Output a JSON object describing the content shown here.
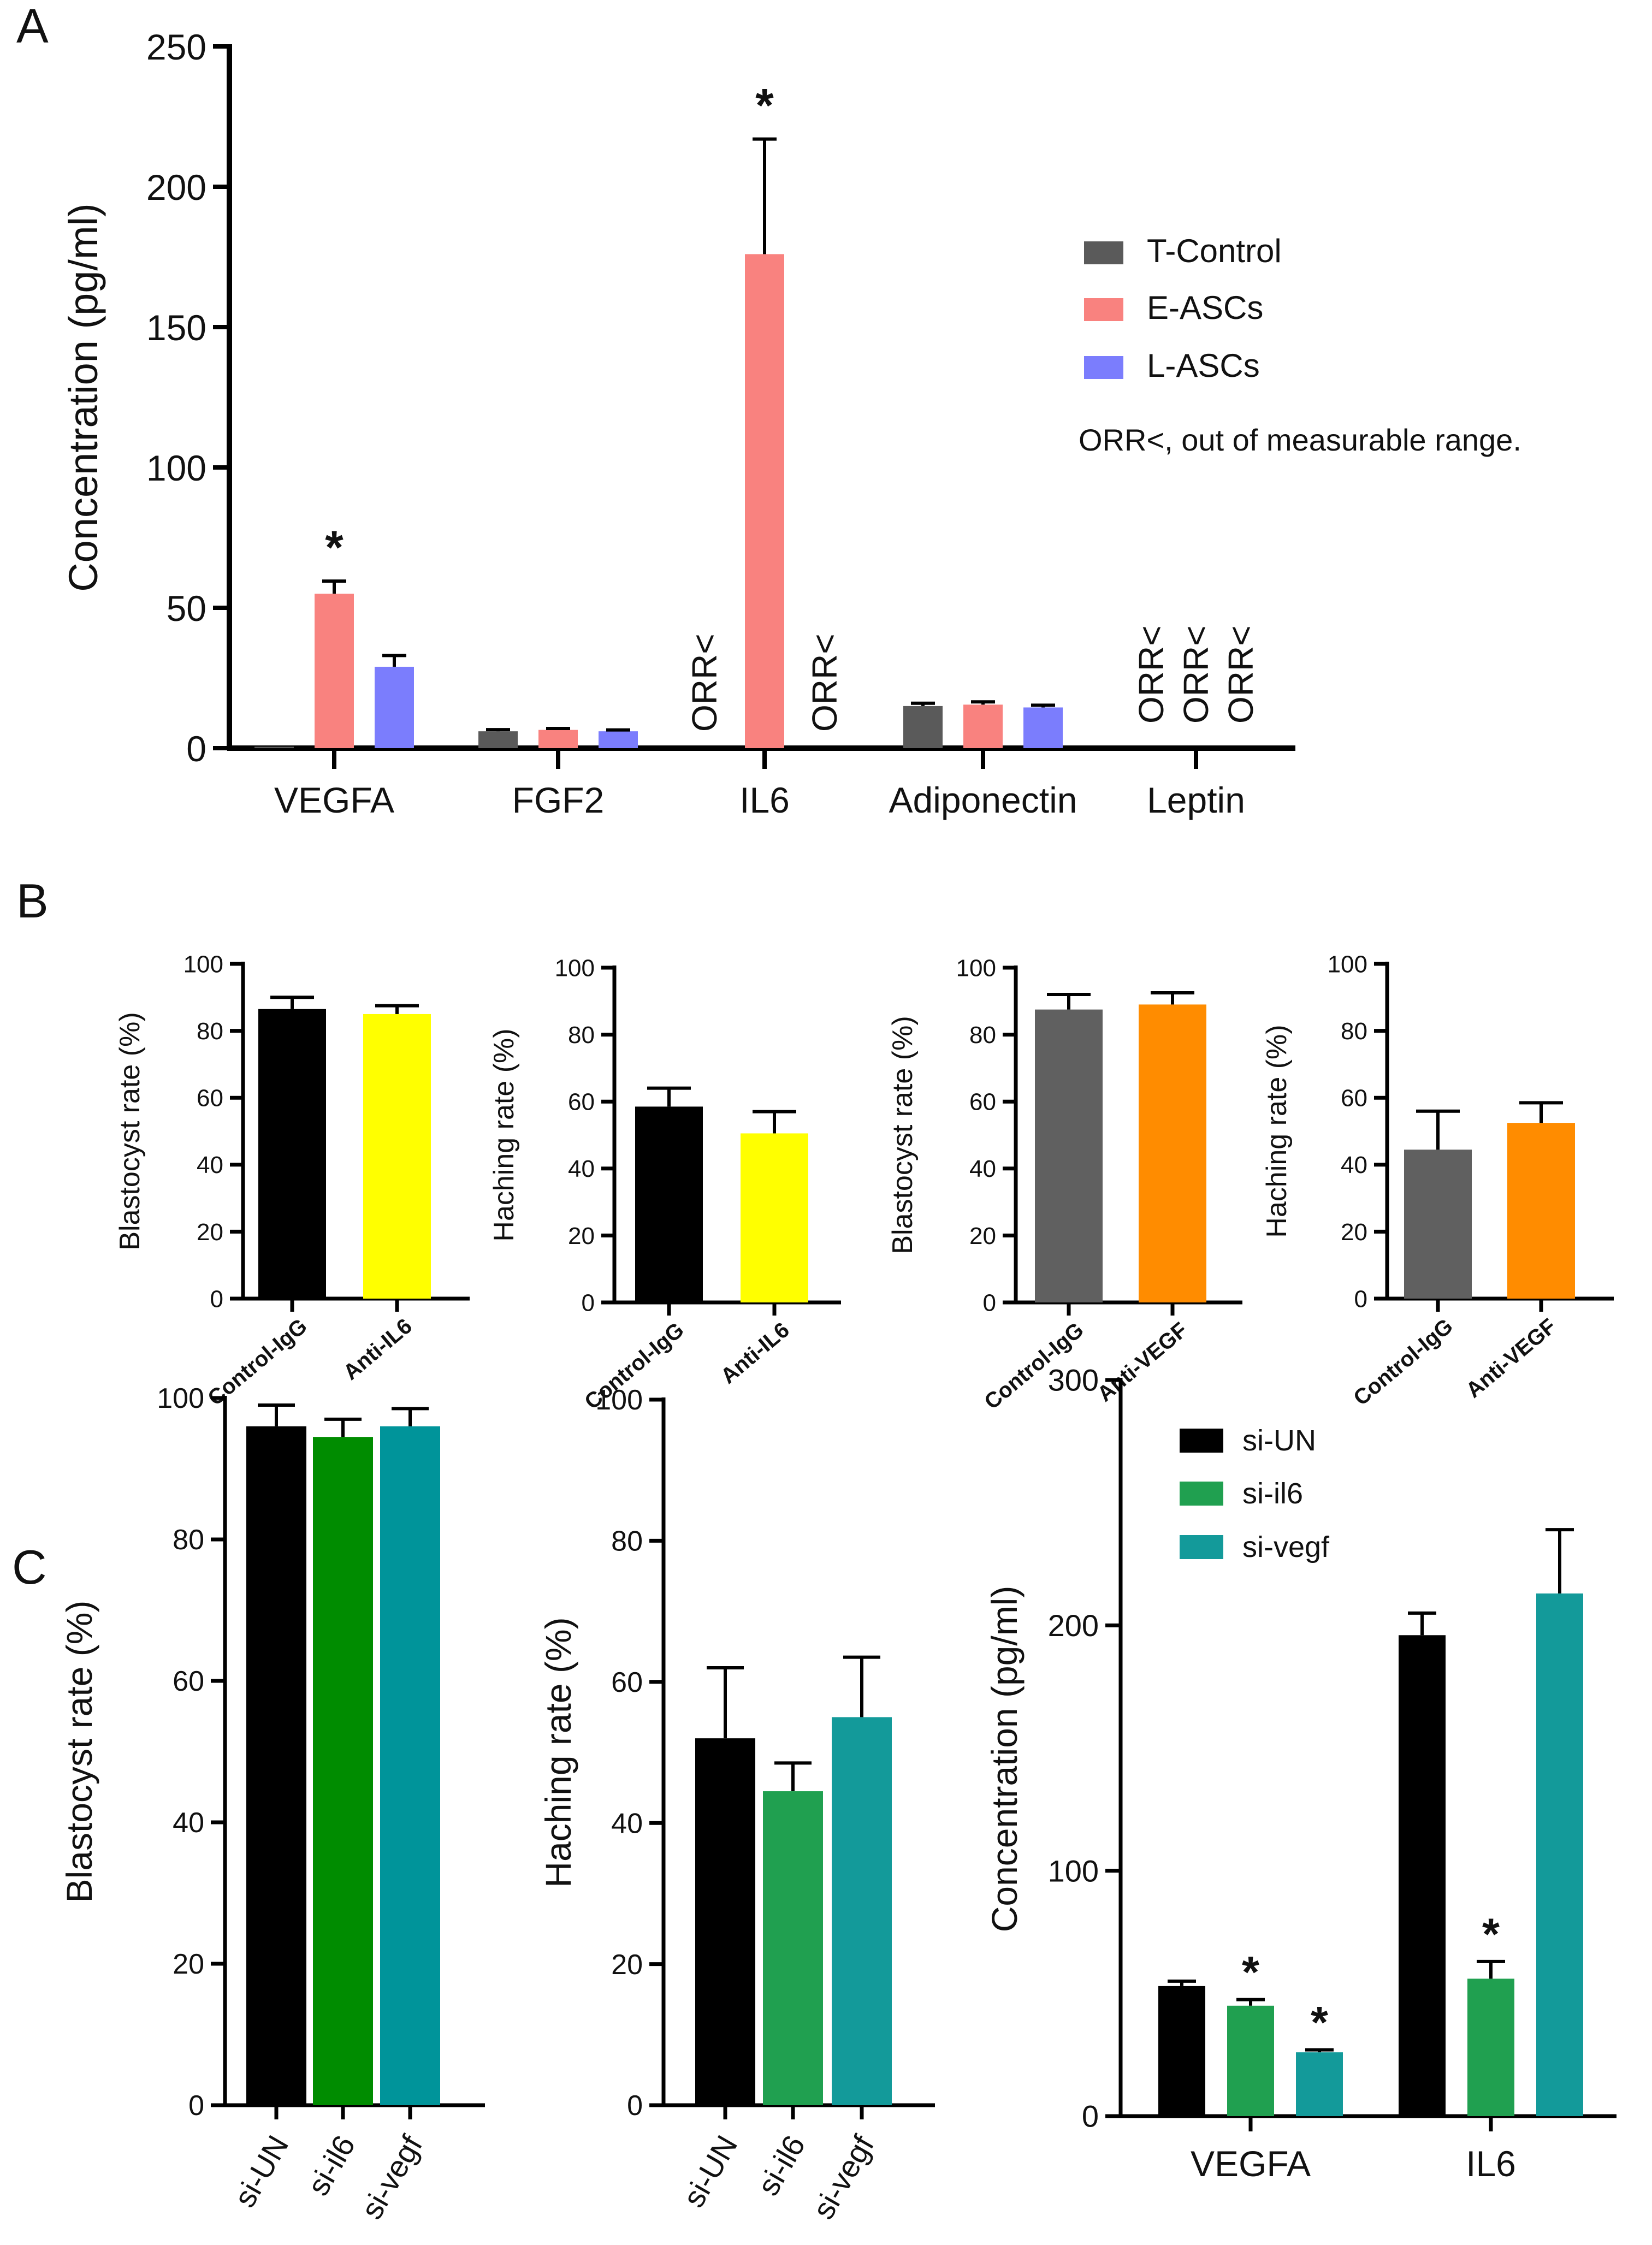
{
  "panels": {
    "A": "A",
    "B": "B",
    "C": "C"
  },
  "chart_data": [
    {
      "id": "A",
      "type": "bar",
      "title": "",
      "xlabel": "",
      "ylabel": "Concentration (pg/ml)",
      "ylim": [
        0,
        250
      ],
      "yticks": [
        0,
        50,
        100,
        150,
        200,
        250
      ],
      "categories": [
        "VEGFA",
        "FGF2",
        "IL6",
        "Adiponectin",
        "Leptin"
      ],
      "series": [
        {
          "name": "T-Control",
          "color": "#5a5a5a",
          "values": [
            0.5,
            6,
            null,
            15,
            null
          ],
          "errors": [
            0,
            0.6,
            0,
            1,
            0
          ]
        },
        {
          "name": "E-ASCs",
          "color": "#f9827f",
          "values": [
            55,
            6.5,
            176,
            15.5,
            null
          ],
          "errors": [
            4.5,
            0.5,
            41,
            1,
            0
          ]
        },
        {
          "name": "L-ASCs",
          "color": "#7b7dfd",
          "values": [
            29,
            6,
            null,
            14.5,
            null
          ],
          "errors": [
            4,
            0.5,
            0,
            0.8,
            0
          ]
        }
      ],
      "significance": [
        {
          "text": "*",
          "category": "VEGFA",
          "series": 1
        },
        {
          "text": "*",
          "category": "IL6",
          "series": 1
        }
      ],
      "out_of_range": [
        {
          "text": "ORR<",
          "category": "IL6",
          "series": 0
        },
        {
          "text": "ORR<",
          "category": "IL6",
          "series": 2
        },
        {
          "text": "ORR<",
          "category": "Leptin",
          "series": 0
        },
        {
          "text": "ORR<",
          "category": "Leptin",
          "series": 1
        },
        {
          "text": "ORR<",
          "category": "Leptin",
          "series": 2
        }
      ],
      "legend": [
        "T-Control",
        "E-ASCs",
        "L-ASCs"
      ],
      "legend_position": "right",
      "note": "ORR<, out of measurable range."
    },
    {
      "id": "B1",
      "type": "bar",
      "ylabel": "Blastocyst rate (%)",
      "ylim": [
        0,
        100
      ],
      "yticks": [
        0,
        20,
        40,
        60,
        80,
        100
      ],
      "categories": [
        "Control-IgG",
        "Anti-IL6"
      ],
      "values": [
        86.5,
        85
      ],
      "errors": [
        3.5,
        2.5
      ],
      "colors": [
        "#000000",
        "#ffff00"
      ]
    },
    {
      "id": "B2",
      "type": "bar",
      "ylabel": "Haching rate (%)",
      "ylim": [
        0,
        100
      ],
      "yticks": [
        0,
        20,
        40,
        60,
        80,
        100
      ],
      "categories": [
        "Control-IgG",
        "Anti-IL6"
      ],
      "values": [
        58.5,
        50.5
      ],
      "errors": [
        5.5,
        6.5
      ],
      "colors": [
        "#000000",
        "#ffff00"
      ]
    },
    {
      "id": "B3",
      "type": "bar",
      "ylabel": "Blastocyst rate (%)",
      "ylim": [
        0,
        100
      ],
      "yticks": [
        0,
        20,
        40,
        60,
        80,
        100
      ],
      "categories": [
        "Control-IgG",
        "Anti-VEGF"
      ],
      "values": [
        87.5,
        89
      ],
      "errors": [
        4.5,
        3.5
      ],
      "colors": [
        "#606060",
        "#ff8c00"
      ]
    },
    {
      "id": "B4",
      "type": "bar",
      "ylabel": "Haching rate (%)",
      "ylim": [
        0,
        100
      ],
      "yticks": [
        0,
        20,
        40,
        60,
        80,
        100
      ],
      "categories": [
        "Control-IgG",
        "Anti-VEGF"
      ],
      "values": [
        44.5,
        52.5
      ],
      "errors": [
        11.5,
        6
      ],
      "colors": [
        "#606060",
        "#ff8c00"
      ]
    },
    {
      "id": "C1",
      "type": "bar",
      "ylabel": "Blastocyst rate (%)",
      "ylim": [
        0,
        100
      ],
      "yticks": [
        0,
        20,
        40,
        60,
        80,
        100
      ],
      "categories": [
        "si-UN",
        "si-il6",
        "si-vegf"
      ],
      "values": [
        96,
        94.5,
        96
      ],
      "errors": [
        3,
        2.5,
        2.5
      ],
      "colors": [
        "#000000",
        "#008c00",
        "#00949a"
      ]
    },
    {
      "id": "C2",
      "type": "bar",
      "ylabel": "Haching rate (%)",
      "ylim": [
        0,
        100
      ],
      "yticks": [
        0,
        20,
        40,
        60,
        80,
        100
      ],
      "categories": [
        "si-UN",
        "si-il6",
        "si-vegf"
      ],
      "values": [
        52,
        44.5,
        55
      ],
      "errors": [
        10,
        4,
        8.5
      ],
      "colors": [
        "#000000",
        "#20a050",
        "#139a9a"
      ]
    },
    {
      "id": "C3",
      "type": "bar",
      "ylabel": "Concentration (pg/ml)",
      "ylim": [
        0,
        300
      ],
      "yticks": [
        0,
        100,
        200,
        300
      ],
      "categories": [
        "VEGFA",
        "IL6"
      ],
      "series": [
        {
          "name": "si-UN",
          "color": "#000000",
          "values": [
            53,
            196
          ],
          "errors": [
            2,
            9
          ]
        },
        {
          "name": "si-il6",
          "color": "#20a050",
          "values": [
            45,
            56
          ],
          "errors": [
            2.5,
            7
          ]
        },
        {
          "name": "si-vegf",
          "color": "#139a9a",
          "values": [
            26,
            213
          ],
          "errors": [
            1,
            26
          ]
        }
      ],
      "significance": [
        {
          "text": "*",
          "category": "VEGFA",
          "series": 1
        },
        {
          "text": "*",
          "category": "VEGFA",
          "series": 2
        },
        {
          "text": "*",
          "category": "IL6",
          "series": 1
        }
      ],
      "legend": [
        "si-UN",
        "si-il6",
        "si-vegf"
      ],
      "legend_position": "top-left"
    }
  ]
}
